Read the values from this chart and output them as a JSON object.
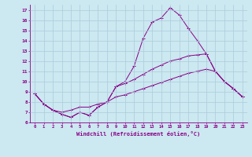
{
  "xlabel": "Windchill (Refroidissement éolien,°C)",
  "x": [
    0,
    1,
    2,
    3,
    4,
    5,
    6,
    7,
    8,
    9,
    10,
    11,
    12,
    13,
    14,
    15,
    16,
    17,
    18,
    19,
    20,
    21,
    22,
    23
  ],
  "line1": [
    8.8,
    7.8,
    7.2,
    6.8,
    6.5,
    7.0,
    6.7,
    7.5,
    8.0,
    9.5,
    10.0,
    11.5,
    14.2,
    15.8,
    16.2,
    17.2,
    16.5,
    15.2,
    14.0,
    12.7,
    11.0,
    10.0,
    9.3,
    8.5
  ],
  "line2": [
    8.8,
    7.8,
    7.2,
    6.8,
    6.5,
    7.0,
    6.7,
    7.5,
    8.0,
    9.5,
    9.8,
    10.2,
    10.7,
    11.2,
    11.6,
    12.0,
    12.2,
    12.5,
    12.6,
    12.7,
    11.0,
    10.0,
    9.3,
    8.5
  ],
  "line3": [
    8.8,
    7.8,
    7.2,
    7.0,
    7.2,
    7.5,
    7.5,
    7.8,
    8.0,
    8.5,
    8.7,
    9.0,
    9.3,
    9.6,
    9.9,
    10.2,
    10.5,
    10.8,
    11.0,
    11.2,
    11.0,
    10.0,
    9.3,
    8.5
  ],
  "line_color": "#880088",
  "bg_color": "#cce8f0",
  "grid_color": "#aaccdd",
  "ylim": [
    6,
    17.5
  ],
  "xlim": [
    -0.5,
    23.5
  ],
  "yticks": [
    6,
    7,
    8,
    9,
    10,
    11,
    12,
    13,
    14,
    15,
    16,
    17
  ],
  "xticks": [
    0,
    1,
    2,
    3,
    4,
    5,
    6,
    7,
    8,
    9,
    10,
    11,
    12,
    13,
    14,
    15,
    16,
    17,
    18,
    19,
    20,
    21,
    22,
    23
  ]
}
